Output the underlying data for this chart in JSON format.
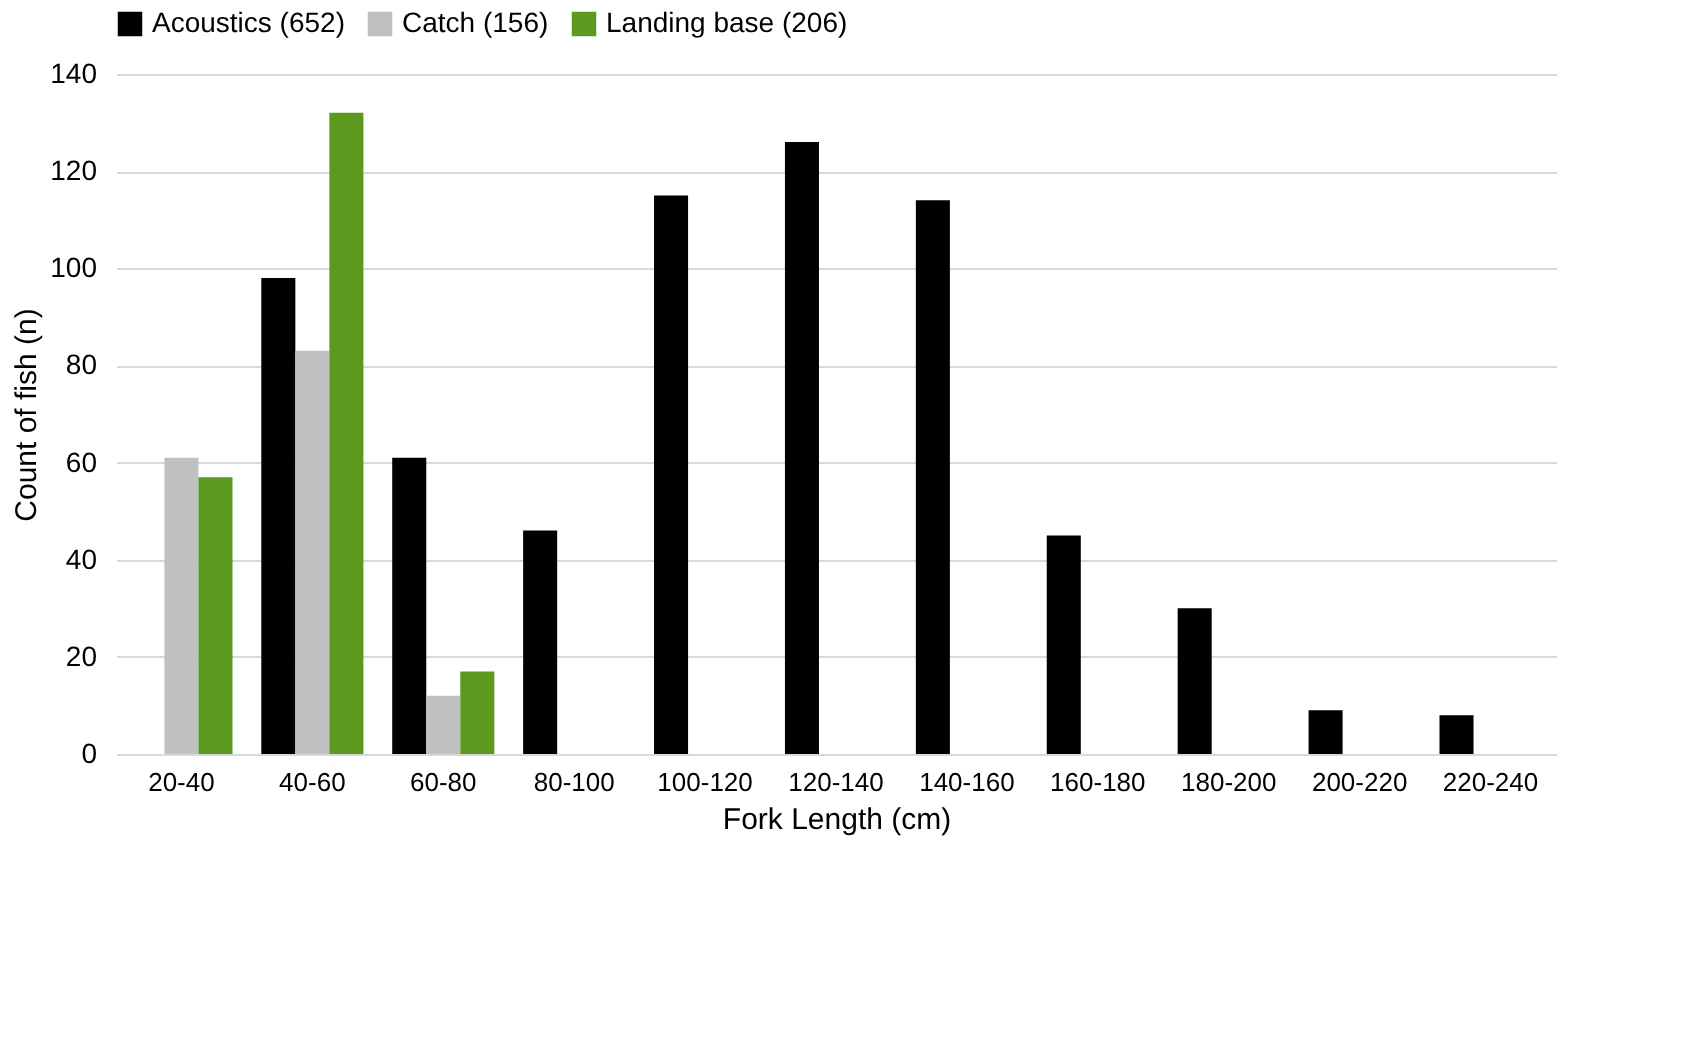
{
  "chart_data": {
    "type": "bar",
    "xlabel": "Fork Length (cm)",
    "ylabel": "Count of fish (n)",
    "categories": [
      "20-40",
      "40-60",
      "60-80",
      "80-100",
      "100-120",
      "120-140",
      "140-160",
      "160-180",
      "180-200",
      "200-220",
      "220-240"
    ],
    "series": [
      {
        "name": "Acoustics (652)",
        "color": "#000000",
        "values": [
          null,
          98,
          61,
          46,
          115,
          126,
          114,
          45,
          30,
          9,
          8
        ]
      },
      {
        "name": "Catch (156)",
        "color": "#c0c0c0",
        "values": [
          61,
          83,
          12,
          null,
          null,
          null,
          null,
          null,
          null,
          null,
          null
        ]
      },
      {
        "name": "Landing base (206)",
        "color": "#5b9a1e",
        "values": [
          57,
          132,
          17,
          null,
          null,
          null,
          null,
          null,
          null,
          null,
          null
        ]
      }
    ],
    "ylim": [
      0,
      140
    ],
    "yticks": [
      0,
      20,
      40,
      60,
      80,
      100,
      120,
      140
    ],
    "grid": "y",
    "legend": "top"
  }
}
